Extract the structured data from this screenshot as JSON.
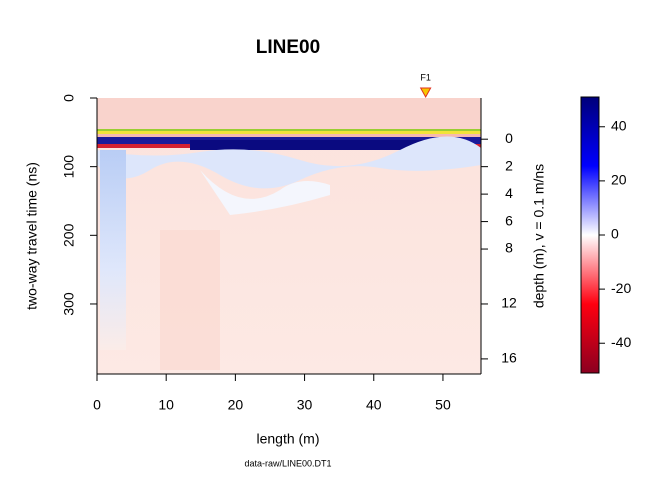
{
  "chart_data": {
    "type": "radargram",
    "title": "LINE00",
    "xlabel": "length (m)",
    "ylabel": "two-way travel time (ns)",
    "y2label": "depth (m),  v = 0.1 m/ns",
    "footer": "data-raw/LINE00.DT1",
    "xlim": [
      0,
      55.5
    ],
    "xticks": [
      0,
      10,
      20,
      30,
      40,
      50
    ],
    "ylim": [
      402,
      0
    ],
    "yticks": [
      0,
      100,
      200,
      300
    ],
    "y2lim": [
      17.1,
      -3
    ],
    "y2ticks": [
      0,
      2,
      4,
      6,
      8,
      12,
      16
    ],
    "zlim": [
      -51,
      51
    ],
    "zticks": [
      -40,
      -20,
      0,
      20,
      40
    ],
    "colors": [
      "#8b0020",
      "#ff0010",
      "#ffffff",
      "#0000ff",
      "#00007a"
    ],
    "annotations": [
      {
        "text": "F1",
        "x": 47.5
      }
    ]
  }
}
